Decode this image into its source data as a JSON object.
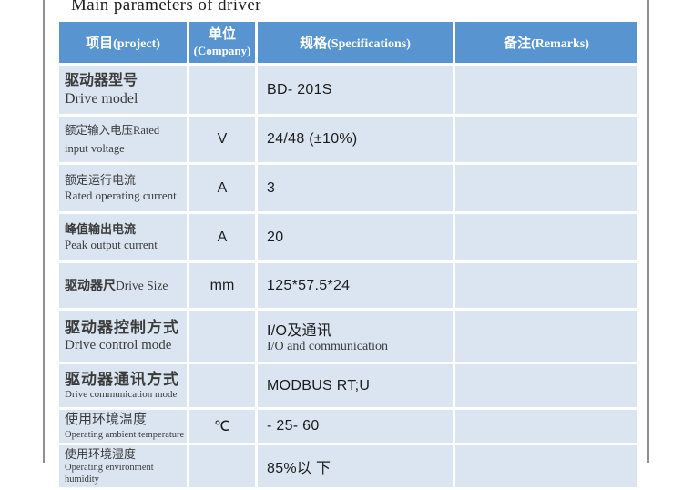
{
  "title": "Main parameters of driver",
  "colors": {
    "header_bg": "#5794d0",
    "row_bg": "#dbe5f1",
    "page_border_gray": "#8f8f8f",
    "header_text": "#ffffff"
  },
  "table": {
    "headers": [
      {
        "zh": "项目",
        "en": "(project)"
      },
      {
        "zh": "单位",
        "en": "(Company)"
      },
      {
        "zh": "规格",
        "en": "(Specifications)"
      },
      {
        "zh": "备注",
        "en": "(Remarks)"
      }
    ],
    "rows": [
      {
        "param_zh": "驱动器型号",
        "param_en": "Drive model",
        "unit": "",
        "spec": "BD- 201S",
        "spec_sub": "",
        "remark": ""
      },
      {
        "param_zh": "额定输入电压",
        "param_en": "Rated input voltage",
        "unit": "V",
        "spec": "24/48 (±10%)",
        "spec_sub": "",
        "remark": ""
      },
      {
        "param_zh": "额定运行电流",
        "param_en": "Rated operating current",
        "unit": "A",
        "spec": "3",
        "spec_sub": "",
        "remark": ""
      },
      {
        "param_zh": "峰值输出电流",
        "param_en": "Peak output current",
        "unit": "A",
        "spec": "20",
        "spec_sub": "",
        "remark": ""
      },
      {
        "param_zh": "驱动器尺",
        "param_en": "Drive Size",
        "unit": "mm",
        "spec": "125*57.5*24",
        "spec_sub": "",
        "remark": ""
      },
      {
        "param_zh": "驱动器控制方式",
        "param_en": "Drive control mode",
        "unit": "",
        "spec": "I/O及通讯",
        "spec_sub": "I/O and communication",
        "remark": ""
      },
      {
        "param_zh": "驱动器通讯方式",
        "param_en": "Drive communication mode",
        "unit": "",
        "spec": "MODBUS RT;U",
        "spec_sub": "",
        "remark": ""
      },
      {
        "param_zh": "使用环境温度",
        "param_en": "Operating ambient temperature",
        "unit": "℃",
        "spec": "- 25- 60",
        "spec_sub": "",
        "remark": ""
      },
      {
        "param_zh": "使用环境湿度",
        "param_en": "Operating environment humidity",
        "unit": "",
        "spec": "85%以 下",
        "spec_sub": "",
        "remark": ""
      }
    ]
  }
}
